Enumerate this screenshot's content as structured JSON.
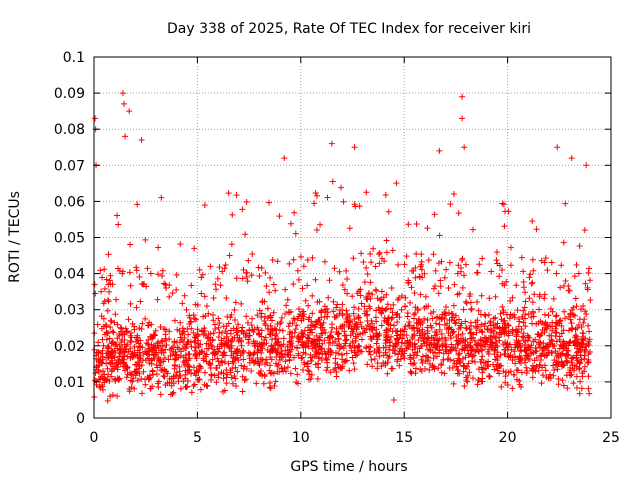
{
  "chart_data": {
    "type": "scatter",
    "title": "Day 338 of 2025, Rate Of TEC Index for receiver kiri",
    "xlabel": "GPS time / hours",
    "ylabel": "ROTI / TECUs",
    "xlim": [
      0,
      25
    ],
    "ylim": [
      0,
      0.1
    ],
    "x_ticks": [
      0,
      5,
      10,
      15,
      20,
      25
    ],
    "x_tick_labels": [
      "0",
      "5",
      "10",
      "15",
      "20",
      "25"
    ],
    "y_ticks": [
      0,
      0.01,
      0.02,
      0.03,
      0.04,
      0.05,
      0.06,
      0.07,
      0.08,
      0.09,
      0.1
    ],
    "y_tick_labels": [
      "0",
      "0.01",
      "0.02",
      "0.03",
      "0.04",
      "0.05",
      "0.06",
      "0.07",
      "0.08",
      "0.09",
      "0.1"
    ],
    "grid": true,
    "marker": "+",
    "series_color": "#ff0000",
    "series": [
      {
        "name": "ROTI",
        "data_range_hours": [
          0,
          24
        ],
        "baseline_profile": [
          {
            "x": 0.0,
            "y": 0.016
          },
          {
            "x": 2.0,
            "y": 0.017
          },
          {
            "x": 4.0,
            "y": 0.016
          },
          {
            "x": 6.0,
            "y": 0.018
          },
          {
            "x": 8.0,
            "y": 0.019
          },
          {
            "x": 10.0,
            "y": 0.02
          },
          {
            "x": 12.0,
            "y": 0.022
          },
          {
            "x": 13.0,
            "y": 0.025
          },
          {
            "x": 14.0,
            "y": 0.023
          },
          {
            "x": 16.0,
            "y": 0.021
          },
          {
            "x": 18.0,
            "y": 0.019
          },
          {
            "x": 20.0,
            "y": 0.02
          },
          {
            "x": 22.0,
            "y": 0.019
          },
          {
            "x": 24.0,
            "y": 0.018
          }
        ],
        "notable_points": [
          {
            "x": 0.05,
            "y": 0.083
          },
          {
            "x": 0.08,
            "y": 0.08
          },
          {
            "x": 0.1,
            "y": 0.07
          },
          {
            "x": 1.4,
            "y": 0.09
          },
          {
            "x": 1.45,
            "y": 0.087
          },
          {
            "x": 1.7,
            "y": 0.085
          },
          {
            "x": 1.5,
            "y": 0.078
          },
          {
            "x": 2.3,
            "y": 0.077
          },
          {
            "x": 9.2,
            "y": 0.072
          },
          {
            "x": 11.5,
            "y": 0.076
          },
          {
            "x": 12.6,
            "y": 0.075
          },
          {
            "x": 16.7,
            "y": 0.074
          },
          {
            "x": 17.8,
            "y": 0.089
          },
          {
            "x": 17.8,
            "y": 0.083
          },
          {
            "x": 17.9,
            "y": 0.075
          },
          {
            "x": 22.4,
            "y": 0.075
          },
          {
            "x": 23.1,
            "y": 0.072
          },
          {
            "x": 23.8,
            "y": 0.07
          },
          {
            "x": 14.5,
            "y": 0.005
          }
        ]
      }
    ]
  }
}
